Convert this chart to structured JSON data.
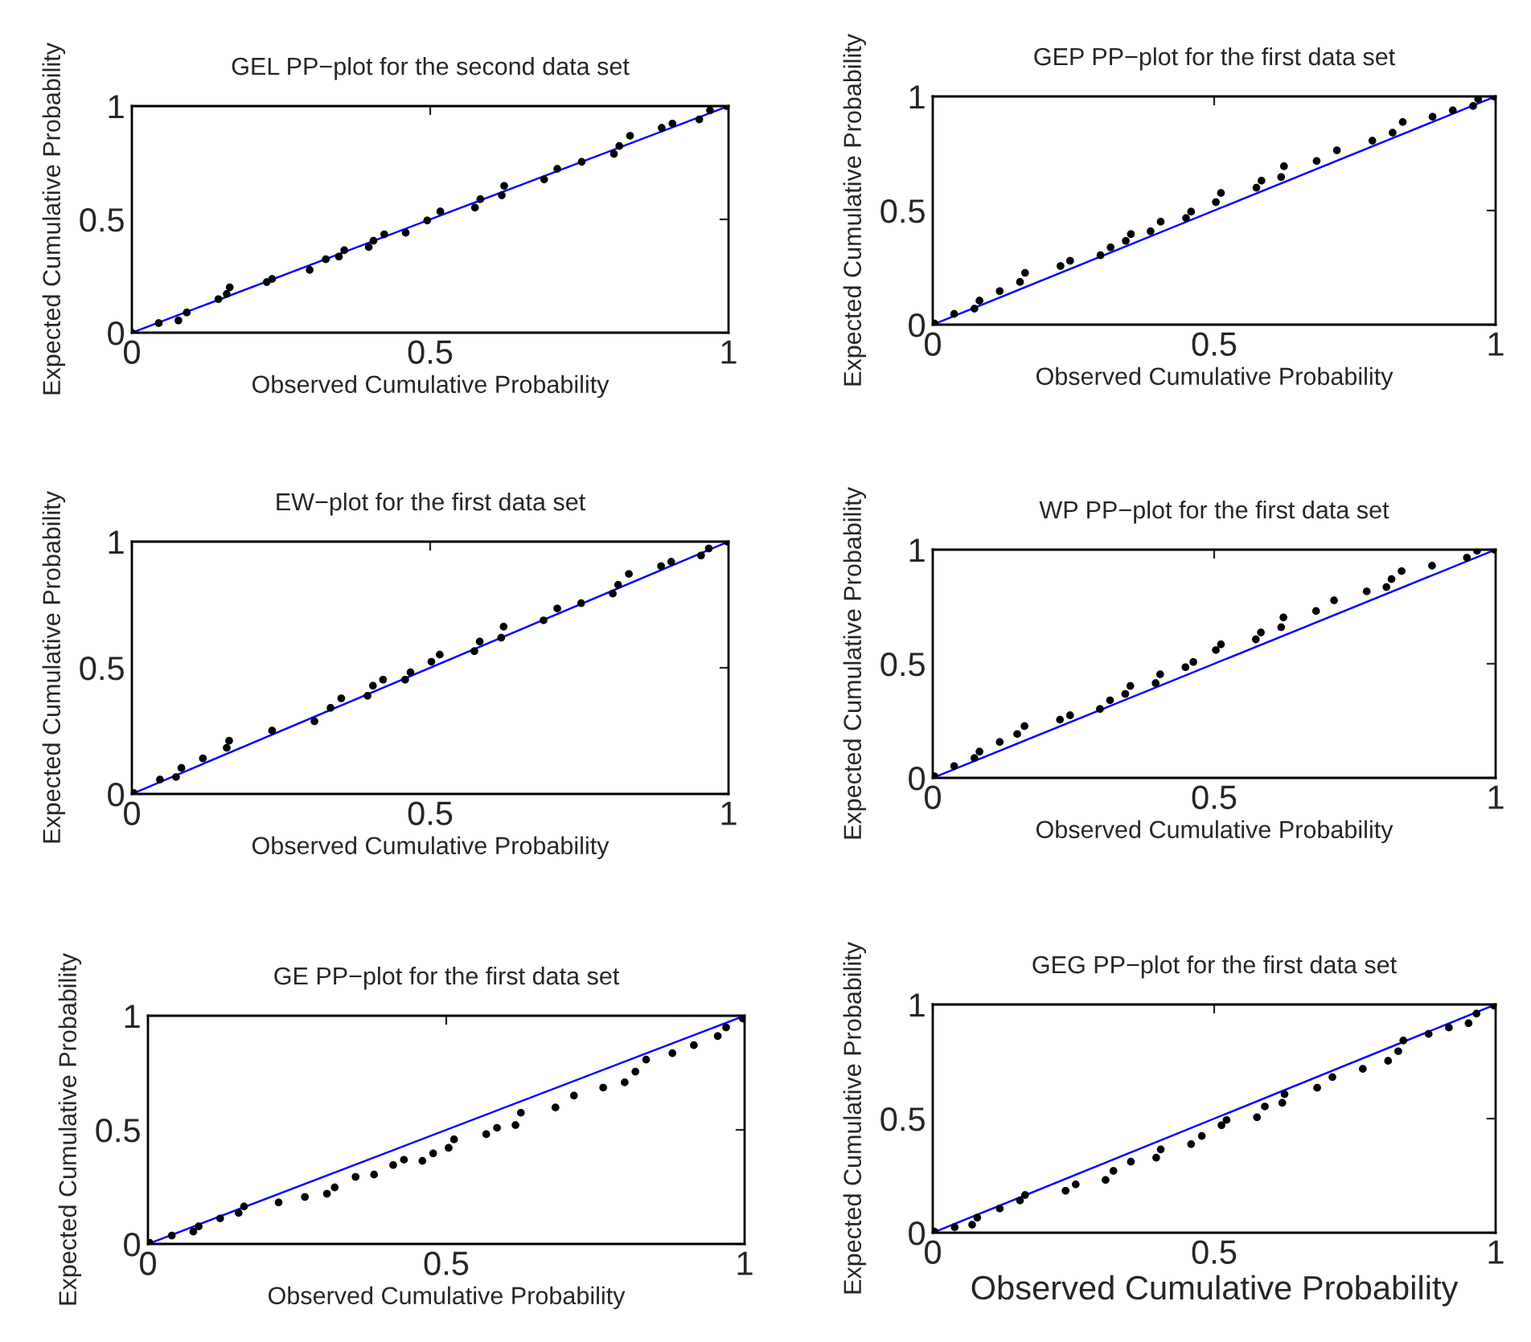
{
  "chart_data": [
    {
      "type": "scatter",
      "title": "GEL PP−plot for the second data set",
      "xlabel": "Observed Cumulative Probability",
      "ylabel": "Expected Cumulative Probability",
      "xlim": [
        0,
        1
      ],
      "ylim": [
        0,
        1
      ],
      "xticks": [
        0,
        0.5,
        1
      ],
      "yticks": [
        0,
        0.5,
        1
      ],
      "grid": false,
      "series": [
        {
          "type": "scatter",
          "marker": "circle",
          "color": "#000000",
          "x": [
            0,
            0.045,
            0.078,
            0.092,
            0.145,
            0.159,
            0.164,
            0.226,
            0.235,
            0.298,
            0.325,
            0.347,
            0.356,
            0.397,
            0.405,
            0.423,
            0.459,
            0.495,
            0.517,
            0.575,
            0.584,
            0.62,
            0.624,
            0.691,
            0.713,
            0.754,
            0.808,
            0.817,
            0.835,
            0.888,
            0.906,
            0.951,
            0.969,
            0.997
          ],
          "values": [
            0,
            0.042,
            0.054,
            0.089,
            0.148,
            0.171,
            0.2,
            0.223,
            0.237,
            0.277,
            0.324,
            0.336,
            0.364,
            0.378,
            0.406,
            0.434,
            0.441,
            0.495,
            0.535,
            0.552,
            0.589,
            0.606,
            0.648,
            0.676,
            0.723,
            0.754,
            0.789,
            0.824,
            0.869,
            0.904,
            0.923,
            0.941,
            0.981,
            1.0
          ]
        },
        {
          "type": "line",
          "marker": "none",
          "color": "#0000ff",
          "x": [
            0,
            1
          ],
          "values": [
            0,
            1
          ]
        }
      ]
    },
    {
      "type": "scatter",
      "title": "GEP PP−plot for the first data set",
      "xlabel": "Observed Cumulative Probability",
      "ylabel": "Expected Cumulative Probability",
      "xlim": [
        0,
        1
      ],
      "ylim": [
        0,
        1
      ],
      "xticks": [
        0,
        0.5,
        1
      ],
      "yticks": [
        0,
        0.5,
        1
      ],
      "grid": false,
      "series": [
        {
          "type": "scatter",
          "marker": "circle",
          "color": "#000000",
          "x": [
            0.003,
            0.038,
            0.074,
            0.083,
            0.119,
            0.155,
            0.164,
            0.227,
            0.244,
            0.298,
            0.316,
            0.343,
            0.352,
            0.387,
            0.405,
            0.45,
            0.459,
            0.503,
            0.512,
            0.575,
            0.584,
            0.619,
            0.624,
            0.682,
            0.718,
            0.781,
            0.817,
            0.835,
            0.888,
            0.924,
            0.96,
            0.969,
            0.997
          ],
          "values": [
            0.005,
            0.047,
            0.07,
            0.105,
            0.147,
            0.187,
            0.227,
            0.257,
            0.28,
            0.304,
            0.339,
            0.367,
            0.397,
            0.409,
            0.451,
            0.467,
            0.495,
            0.537,
            0.577,
            0.6,
            0.631,
            0.647,
            0.694,
            0.717,
            0.764,
            0.806,
            0.841,
            0.888,
            0.911,
            0.939,
            0.958,
            0.988,
            1.0
          ]
        },
        {
          "type": "line",
          "marker": "none",
          "color": "#0000ff",
          "x": [
            0,
            1
          ],
          "values": [
            0,
            1
          ]
        }
      ]
    },
    {
      "type": "scatter",
      "title": "EW−plot for the first data set",
      "xlabel": "Observed Cumulative Probability",
      "ylabel": "Expected Cumulative Probability",
      "xlim": [
        0,
        1
      ],
      "ylim": [
        0,
        1
      ],
      "xticks": [
        0,
        0.5,
        1
      ],
      "yticks": [
        0,
        0.5,
        1
      ],
      "grid": false,
      "series": [
        {
          "type": "scatter",
          "marker": "circle",
          "color": "#000000",
          "x": [
            0.003,
            0.047,
            0.074,
            0.083,
            0.119,
            0.159,
            0.163,
            0.235,
            0.306,
            0.333,
            0.351,
            0.395,
            0.404,
            0.421,
            0.458,
            0.467,
            0.502,
            0.516,
            0.574,
            0.583,
            0.619,
            0.623,
            0.69,
            0.713,
            0.753,
            0.806,
            0.815,
            0.833,
            0.887,
            0.904,
            0.954,
            0.967,
            0.998
          ],
          "values": [
            0.004,
            0.057,
            0.067,
            0.103,
            0.141,
            0.183,
            0.211,
            0.251,
            0.288,
            0.341,
            0.379,
            0.389,
            0.429,
            0.453,
            0.453,
            0.482,
            0.524,
            0.552,
            0.566,
            0.604,
            0.619,
            0.663,
            0.688,
            0.735,
            0.756,
            0.794,
            0.829,
            0.872,
            0.903,
            0.92,
            0.945,
            0.973,
            1.0
          ]
        },
        {
          "type": "line",
          "marker": "none",
          "color": "#0000ff",
          "x": [
            0,
            1
          ],
          "values": [
            0,
            1
          ]
        }
      ]
    },
    {
      "type": "scatter",
      "title": "WP PP−plot for the first data set",
      "xlabel": "Observed Cumulative Probability",
      "ylabel": "Expected Cumulative Probability",
      "xlim": [
        0,
        1
      ],
      "ylim": [
        0,
        1
      ],
      "xticks": [
        0,
        0.5,
        1
      ],
      "yticks": [
        0,
        0.5,
        1
      ],
      "grid": false,
      "series": [
        {
          "type": "scatter",
          "marker": "circle",
          "color": "#000000",
          "x": [
            0.003,
            0.038,
            0.074,
            0.083,
            0.119,
            0.15,
            0.163,
            0.226,
            0.244,
            0.297,
            0.315,
            0.342,
            0.351,
            0.396,
            0.404,
            0.449,
            0.463,
            0.503,
            0.512,
            0.574,
            0.583,
            0.619,
            0.623,
            0.681,
            0.713,
            0.771,
            0.806,
            0.815,
            0.833,
            0.887,
            0.949,
            0.967,
            0.998
          ],
          "values": [
            0.007,
            0.052,
            0.087,
            0.115,
            0.157,
            0.192,
            0.227,
            0.255,
            0.274,
            0.302,
            0.34,
            0.368,
            0.403,
            0.415,
            0.454,
            0.485,
            0.508,
            0.56,
            0.585,
            0.607,
            0.637,
            0.66,
            0.703,
            0.731,
            0.778,
            0.817,
            0.836,
            0.871,
            0.906,
            0.93,
            0.965,
            0.995,
            1.0
          ]
        },
        {
          "type": "line",
          "marker": "none",
          "color": "#0000ff",
          "x": [
            0,
            1
          ],
          "values": [
            0,
            1
          ]
        }
      ]
    },
    {
      "type": "scatter",
      "title": "GE PP−plot for the first data set",
      "xlabel": "Observed Cumulative Probability",
      "ylabel": "Expected Cumulative Probability",
      "xlim": [
        0,
        1
      ],
      "ylim": [
        0,
        1
      ],
      "xticks": [
        0,
        0.5,
        1
      ],
      "yticks": [
        0,
        0.5,
        1
      ],
      "grid": false,
      "series": [
        {
          "type": "scatter",
          "marker": "circle",
          "color": "#000000",
          "x": [
            0.003,
            0.04,
            0.076,
            0.085,
            0.121,
            0.152,
            0.161,
            0.219,
            0.263,
            0.3,
            0.313,
            0.348,
            0.379,
            0.411,
            0.429,
            0.46,
            0.478,
            0.504,
            0.513,
            0.567,
            0.585,
            0.616,
            0.625,
            0.683,
            0.714,
            0.763,
            0.799,
            0.817,
            0.835,
            0.879,
            0.915,
            0.955,
            0.969,
            0.997
          ],
          "values": [
            0.005,
            0.037,
            0.054,
            0.077,
            0.112,
            0.136,
            0.164,
            0.182,
            0.206,
            0.22,
            0.248,
            0.294,
            0.304,
            0.346,
            0.369,
            0.364,
            0.397,
            0.421,
            0.458,
            0.481,
            0.509,
            0.521,
            0.575,
            0.598,
            0.65,
            0.685,
            0.708,
            0.755,
            0.808,
            0.836,
            0.871,
            0.911,
            0.949,
            0.988
          ]
        },
        {
          "type": "line",
          "marker": "none",
          "color": "#0000ff",
          "x": [
            0,
            1
          ],
          "values": [
            0,
            1
          ]
        }
      ]
    },
    {
      "type": "scatter",
      "title": "GEG PP−plot for the first data set",
      "xlabel": "Observed Cumulative Probability",
      "ylabel": "Expected Cumulative Probability",
      "xlim": [
        0,
        1
      ],
      "ylim": [
        0,
        1
      ],
      "xticks": [
        0,
        0.5,
        1
      ],
      "yticks": [
        0,
        0.5,
        1
      ],
      "grid": false,
      "series": [
        {
          "type": "scatter",
          "marker": "circle",
          "color": "#000000",
          "x": [
            0.003,
            0.039,
            0.07,
            0.079,
            0.119,
            0.155,
            0.164,
            0.236,
            0.254,
            0.307,
            0.321,
            0.352,
            0.397,
            0.405,
            0.459,
            0.478,
            0.513,
            0.522,
            0.576,
            0.59,
            0.621,
            0.625,
            0.683,
            0.71,
            0.764,
            0.809,
            0.827,
            0.836,
            0.881,
            0.917,
            0.952,
            0.966,
            0.997
          ],
          "values": [
            0.005,
            0.024,
            0.035,
            0.066,
            0.106,
            0.141,
            0.165,
            0.184,
            0.212,
            0.231,
            0.271,
            0.311,
            0.329,
            0.365,
            0.388,
            0.424,
            0.471,
            0.494,
            0.506,
            0.553,
            0.569,
            0.607,
            0.635,
            0.682,
            0.718,
            0.753,
            0.795,
            0.842,
            0.871,
            0.899,
            0.918,
            0.96,
            0.995
          ]
        },
        {
          "type": "line",
          "marker": "none",
          "color": "#0000ff",
          "x": [
            0,
            1
          ],
          "values": [
            0,
            1
          ]
        }
      ]
    }
  ]
}
